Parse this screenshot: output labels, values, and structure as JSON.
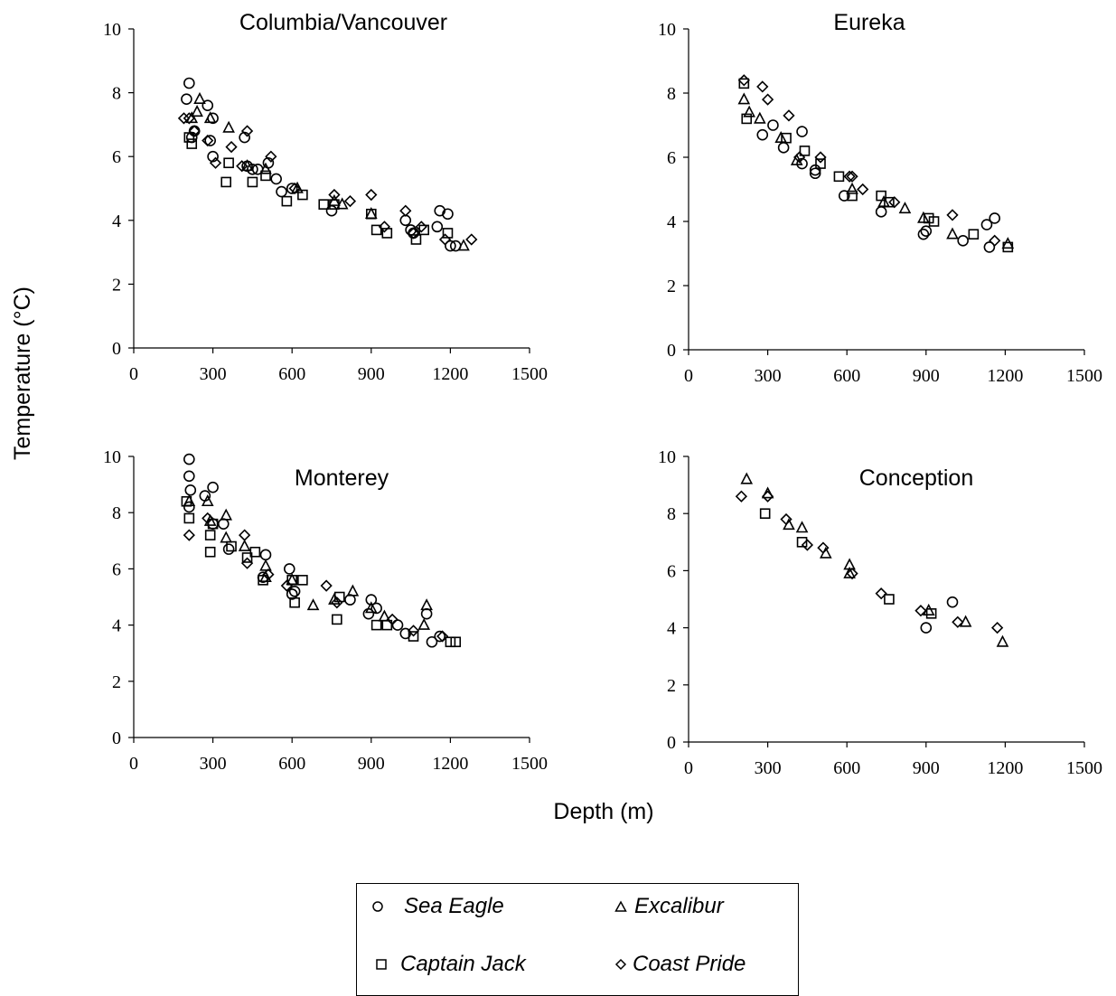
{
  "chart_data": [
    {
      "type": "scatter",
      "title": "Columbia/Vancouver",
      "xlim": [
        0,
        1500
      ],
      "ylim": [
        0,
        10
      ],
      "xticks": [
        0,
        300,
        600,
        900,
        1200,
        1500
      ],
      "yticks": [
        0,
        2,
        4,
        6,
        8,
        10
      ],
      "series": [
        {
          "name": "Sea Eagle",
          "marker": "circle",
          "points": [
            [
              200,
              7.8
            ],
            [
              210,
              8.3
            ],
            [
              220,
              6.6
            ],
            [
              230,
              6.8
            ],
            [
              280,
              7.6
            ],
            [
              290,
              6.5
            ],
            [
              300,
              7.2
            ],
            [
              300,
              6.0
            ],
            [
              420,
              6.6
            ],
            [
              430,
              5.7
            ],
            [
              450,
              5.6
            ],
            [
              470,
              5.6
            ],
            [
              510,
              5.8
            ],
            [
              540,
              5.3
            ],
            [
              560,
              4.9
            ],
            [
              600,
              5.0
            ],
            [
              750,
              4.3
            ],
            [
              1030,
              4.0
            ],
            [
              1050,
              3.7
            ],
            [
              1060,
              3.6
            ],
            [
              1150,
              3.8
            ],
            [
              1160,
              4.3
            ],
            [
              1190,
              4.2
            ],
            [
              1200,
              3.2
            ],
            [
              1220,
              3.2
            ]
          ]
        },
        {
          "name": "Excalibur",
          "marker": "triangle",
          "points": [
            [
              220,
              7.2
            ],
            [
              240,
              7.4
            ],
            [
              250,
              7.8
            ],
            [
              290,
              7.2
            ],
            [
              360,
              6.9
            ],
            [
              430,
              5.7
            ],
            [
              500,
              5.6
            ],
            [
              620,
              5.0
            ],
            [
              760,
              4.6
            ],
            [
              790,
              4.5
            ],
            [
              900,
              4.2
            ],
            [
              1250,
              3.2
            ]
          ]
        },
        {
          "name": "Captain Jack",
          "marker": "square",
          "points": [
            [
              210,
              6.6
            ],
            [
              220,
              6.4
            ],
            [
              350,
              5.2
            ],
            [
              360,
              5.8
            ],
            [
              450,
              5.2
            ],
            [
              500,
              5.4
            ],
            [
              580,
              4.6
            ],
            [
              640,
              4.8
            ],
            [
              720,
              4.5
            ],
            [
              760,
              4.5
            ],
            [
              900,
              4.2
            ],
            [
              920,
              3.7
            ],
            [
              960,
              3.6
            ],
            [
              1070,
              3.4
            ],
            [
              1100,
              3.7
            ],
            [
              1190,
              3.6
            ]
          ]
        },
        {
          "name": "Coast Pride",
          "marker": "diamond",
          "points": [
            [
              190,
              7.2
            ],
            [
              210,
              7.2
            ],
            [
              230,
              6.8
            ],
            [
              280,
              6.5
            ],
            [
              310,
              5.8
            ],
            [
              370,
              6.3
            ],
            [
              410,
              5.7
            ],
            [
              430,
              6.8
            ],
            [
              520,
              6.0
            ],
            [
              610,
              5.0
            ],
            [
              760,
              4.8
            ],
            [
              820,
              4.6
            ],
            [
              900,
              4.8
            ],
            [
              950,
              3.8
            ],
            [
              1030,
              4.3
            ],
            [
              1060,
              3.6
            ],
            [
              1090,
              3.8
            ],
            [
              1180,
              3.4
            ],
            [
              1280,
              3.4
            ]
          ]
        }
      ]
    },
    {
      "type": "scatter",
      "title": "Eureka",
      "xlim": [
        0,
        1500
      ],
      "ylim": [
        0,
        10
      ],
      "xticks": [
        0,
        300,
        600,
        900,
        1200,
        1500
      ],
      "yticks": [
        0,
        2,
        4,
        6,
        8,
        10
      ],
      "series": [
        {
          "name": "Sea Eagle",
          "marker": "circle",
          "points": [
            [
              280,
              6.7
            ],
            [
              320,
              7.0
            ],
            [
              360,
              6.3
            ],
            [
              430,
              6.8
            ],
            [
              430,
              5.8
            ],
            [
              480,
              5.6
            ],
            [
              480,
              5.5
            ],
            [
              590,
              4.8
            ],
            [
              730,
              4.3
            ],
            [
              890,
              3.6
            ],
            [
              900,
              3.7
            ],
            [
              1040,
              3.4
            ],
            [
              1130,
              3.9
            ],
            [
              1140,
              3.2
            ],
            [
              1160,
              4.1
            ]
          ]
        },
        {
          "name": "Excalibur",
          "marker": "triangle",
          "points": [
            [
              210,
              7.8
            ],
            [
              230,
              7.4
            ],
            [
              270,
              7.2
            ],
            [
              350,
              6.6
            ],
            [
              410,
              5.9
            ],
            [
              620,
              5.0
            ],
            [
              740,
              4.6
            ],
            [
              820,
              4.4
            ],
            [
              890,
              4.1
            ],
            [
              1000,
              3.6
            ],
            [
              1210,
              3.3
            ]
          ]
        },
        {
          "name": "Captain Jack",
          "marker": "square",
          "points": [
            [
              210,
              8.3
            ],
            [
              220,
              7.2
            ],
            [
              370,
              6.6
            ],
            [
              440,
              6.2
            ],
            [
              500,
              5.8
            ],
            [
              570,
              5.4
            ],
            [
              620,
              4.8
            ],
            [
              730,
              4.8
            ],
            [
              760,
              4.6
            ],
            [
              910,
              4.1
            ],
            [
              930,
              4.0
            ],
            [
              1080,
              3.6
            ],
            [
              1210,
              3.2
            ]
          ]
        },
        {
          "name": "Coast Pride",
          "marker": "diamond",
          "points": [
            [
              210,
              8.4
            ],
            [
              280,
              8.2
            ],
            [
              300,
              7.8
            ],
            [
              380,
              7.3
            ],
            [
              420,
              6.0
            ],
            [
              500,
              6.0
            ],
            [
              610,
              5.4
            ],
            [
              620,
              5.4
            ],
            [
              660,
              5.0
            ],
            [
              780,
              4.6
            ],
            [
              1000,
              4.2
            ],
            [
              1160,
              3.4
            ]
          ]
        }
      ]
    },
    {
      "type": "scatter",
      "title": "Monterey",
      "xlim": [
        0,
        1500
      ],
      "ylim": [
        0,
        10
      ],
      "xticks": [
        0,
        300,
        600,
        900,
        1200,
        1500
      ],
      "yticks": [
        0,
        2,
        4,
        6,
        8,
        10
      ],
      "series": [
        {
          "name": "Sea Eagle",
          "marker": "circle",
          "points": [
            [
              210,
              9.9
            ],
            [
              210,
              9.3
            ],
            [
              215,
              8.8
            ],
            [
              210,
              8.2
            ],
            [
              270,
              8.6
            ],
            [
              300,
              8.9
            ],
            [
              300,
              7.6
            ],
            [
              340,
              7.6
            ],
            [
              360,
              6.7
            ],
            [
              490,
              5.7
            ],
            [
              500,
              6.5
            ],
            [
              590,
              6.0
            ],
            [
              600,
              5.1
            ],
            [
              610,
              5.2
            ],
            [
              820,
              4.9
            ],
            [
              890,
              4.4
            ],
            [
              900,
              4.9
            ],
            [
              920,
              4.6
            ],
            [
              1000,
              4.0
            ],
            [
              1030,
              3.7
            ],
            [
              1110,
              4.4
            ],
            [
              1130,
              3.4
            ],
            [
              1160,
              3.6
            ]
          ]
        },
        {
          "name": "Excalibur",
          "marker": "triangle",
          "points": [
            [
              210,
              8.4
            ],
            [
              280,
              8.4
            ],
            [
              290,
              7.7
            ],
            [
              350,
              7.9
            ],
            [
              350,
              7.1
            ],
            [
              420,
              6.8
            ],
            [
              500,
              5.7
            ],
            [
              500,
              6.1
            ],
            [
              600,
              5.6
            ],
            [
              680,
              4.7
            ],
            [
              760,
              4.9
            ],
            [
              830,
              5.2
            ],
            [
              900,
              4.6
            ],
            [
              950,
              4.3
            ],
            [
              1100,
              4.0
            ],
            [
              1110,
              4.7
            ]
          ]
        },
        {
          "name": "Captain Jack",
          "marker": "square",
          "points": [
            [
              200,
              8.4
            ],
            [
              210,
              7.8
            ],
            [
              290,
              6.6
            ],
            [
              290,
              7.2
            ],
            [
              300,
              7.6
            ],
            [
              370,
              6.8
            ],
            [
              430,
              6.4
            ],
            [
              460,
              6.6
            ],
            [
              490,
              5.6
            ],
            [
              600,
              5.6
            ],
            [
              610,
              4.8
            ],
            [
              640,
              5.6
            ],
            [
              770,
              4.2
            ],
            [
              780,
              5.0
            ],
            [
              920,
              4.0
            ],
            [
              960,
              4.0
            ],
            [
              1060,
              3.6
            ],
            [
              1200,
              3.4
            ],
            [
              1220,
              3.4
            ]
          ]
        },
        {
          "name": "Coast Pride",
          "marker": "diamond",
          "points": [
            [
              210,
              7.2
            ],
            [
              280,
              7.8
            ],
            [
              420,
              7.2
            ],
            [
              430,
              6.2
            ],
            [
              510,
              5.8
            ],
            [
              580,
              5.4
            ],
            [
              730,
              5.4
            ],
            [
              770,
              4.8
            ],
            [
              980,
              4.2
            ],
            [
              1060,
              3.8
            ],
            [
              1170,
              3.6
            ]
          ]
        }
      ]
    },
    {
      "type": "scatter",
      "title": "Conception",
      "xlim": [
        0,
        1500
      ],
      "ylim": [
        0,
        10
      ],
      "xticks": [
        0,
        300,
        600,
        900,
        1200,
        1500
      ],
      "yticks": [
        0,
        2,
        4,
        6,
        8,
        10
      ],
      "series": [
        {
          "name": "Sea Eagle",
          "marker": "circle",
          "points": [
            [
              900,
              4.0
            ],
            [
              1000,
              4.9
            ]
          ]
        },
        {
          "name": "Excalibur",
          "marker": "triangle",
          "points": [
            [
              220,
              9.2
            ],
            [
              300,
              8.7
            ],
            [
              380,
              7.6
            ],
            [
              430,
              7.5
            ],
            [
              520,
              6.6
            ],
            [
              610,
              5.9
            ],
            [
              610,
              6.2
            ],
            [
              910,
              4.6
            ],
            [
              1050,
              4.2
            ],
            [
              1190,
              3.5
            ]
          ]
        },
        {
          "name": "Captain Jack",
          "marker": "square",
          "points": [
            [
              290,
              8.0
            ],
            [
              430,
              7.0
            ],
            [
              760,
              5.0
            ],
            [
              920,
              4.5
            ]
          ]
        },
        {
          "name": "Coast Pride",
          "marker": "diamond",
          "points": [
            [
              200,
              8.6
            ],
            [
              300,
              8.6
            ],
            [
              370,
              7.8
            ],
            [
              450,
              6.9
            ],
            [
              510,
              6.8
            ],
            [
              620,
              5.9
            ],
            [
              730,
              5.2
            ],
            [
              880,
              4.6
            ],
            [
              1020,
              4.2
            ],
            [
              1170,
              4.0
            ]
          ]
        }
      ]
    }
  ],
  "axes": {
    "xlabel": "Depth (m)",
    "ylabel": "Temperature (°C)"
  },
  "legend": {
    "items": [
      {
        "label": "Sea Eagle",
        "marker": "circle"
      },
      {
        "label": "Excalibur",
        "marker": "triangle"
      },
      {
        "label": "Captain Jack",
        "marker": "square"
      },
      {
        "label": "Coast Pride",
        "marker": "diamond"
      }
    ]
  }
}
